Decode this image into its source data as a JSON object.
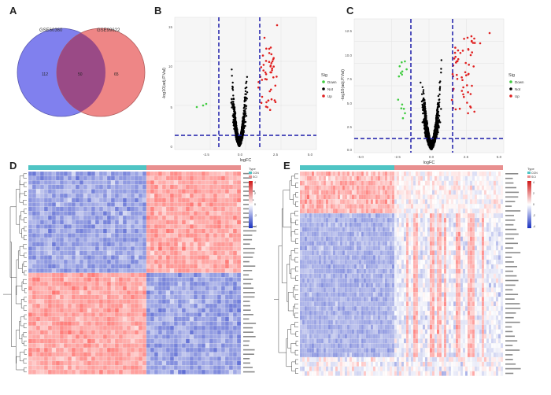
{
  "panels": {
    "a": {
      "letter": "A"
    },
    "b": {
      "letter": "B"
    },
    "c": {
      "letter": "C"
    },
    "d": {
      "letter": "D"
    },
    "e": {
      "letter": "E"
    }
  },
  "venn": {
    "left_label": "GSE60360",
    "right_label": "GSE99622",
    "left_only": "112",
    "overlap": "50",
    "right_only": "65",
    "left_color": "#8080ee",
    "right_color": "#ee8686",
    "overlap_color": "#9a4a86"
  },
  "volcano_b": {
    "xlabel": "logFC",
    "ylabel": "-log10(adj.P.Val)",
    "xticks": [
      "-2.5",
      "0.0",
      "2.5",
      "5.0"
    ],
    "yticks": [
      "0",
      "5",
      "10",
      "15"
    ],
    "legend_title": "Sig",
    "legend": [
      "Down",
      "Not",
      "Up"
    ]
  },
  "volcano_c": {
    "xlabel": "logFC",
    "ylabel": "-log10(adj.P.Val)",
    "xticks": [
      "-5.0",
      "-2.5",
      "0.0",
      "2.5",
      "5.0"
    ],
    "yticks": [
      "0.0",
      "2.5",
      "5.0",
      "7.5",
      "10.0",
      "12.5"
    ],
    "legend_title": "Sig",
    "legend": [
      "Down",
      "Not",
      "Up"
    ]
  },
  "heatmap_d": {
    "legend_title": "Type",
    "legend": [
      "CON",
      "SCI"
    ],
    "scale": [
      "4",
      "2",
      "0",
      "-2",
      "-4"
    ]
  },
  "heatmap_e": {
    "legend_title": "Type",
    "legend": [
      "CON",
      "SCI"
    ],
    "scale": [
      "4",
      "2",
      "0",
      "-2",
      "-4"
    ]
  },
  "colors": {
    "up": "#e02020",
    "down": "#40cc40",
    "not": "#000000",
    "threshold": "#1a1aa8",
    "con_bar": "#4fc4c4",
    "sci_bar": "#e88f8f"
  }
}
